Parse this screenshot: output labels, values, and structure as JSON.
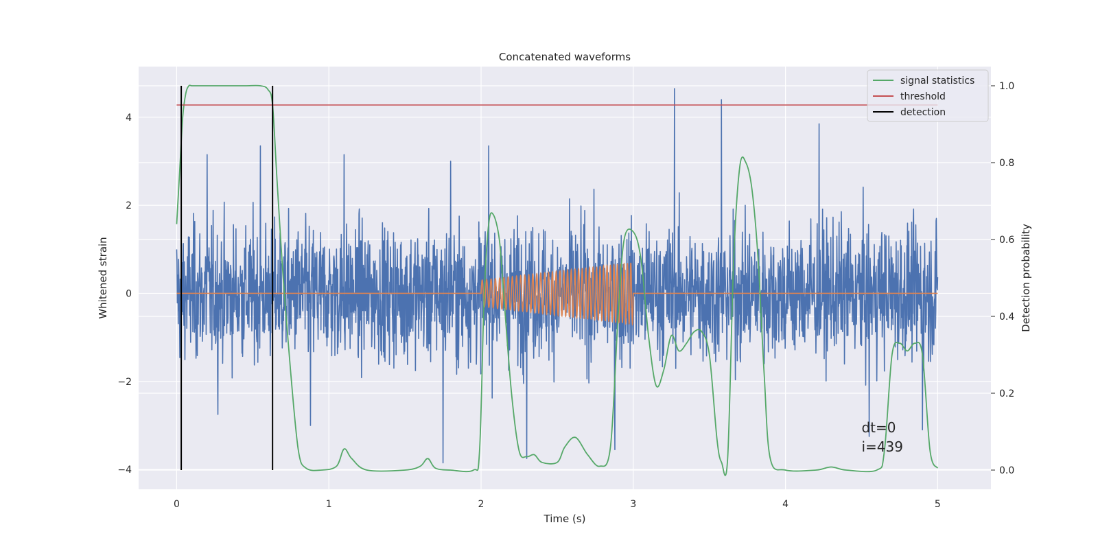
{
  "chart_data": {
    "type": "line",
    "title": "Concatenated waveforms",
    "xlabel": "Time (s)",
    "ylabel": "Whitened strain",
    "y2label": "Detection probability",
    "xlim": [
      -0.25,
      5.35
    ],
    "ylim": [
      -4.45,
      5.15
    ],
    "y2lim": [
      -0.05,
      1.05
    ],
    "xticks": [
      0,
      1,
      2,
      3,
      4,
      5
    ],
    "xtick_labels": [
      "0",
      "1",
      "2",
      "3",
      "4",
      "5"
    ],
    "yticks": [
      -4,
      -2,
      0,
      2,
      4
    ],
    "ytick_labels": [
      "−4",
      "−2",
      "0",
      "2",
      "4"
    ],
    "y2ticks": [
      0.0,
      0.2,
      0.4,
      0.6,
      0.8,
      1.0
    ],
    "y2tick_labels": [
      "0.0",
      "0.2",
      "0.4",
      "0.6",
      "0.8",
      "1.0"
    ],
    "grid": true,
    "legend_position": "top-right",
    "colors": {
      "background": "#eaeaf2",
      "grid": "#ffffff",
      "strain": "#4c72b0",
      "injection": "#dd8452",
      "statistics": "#55a868",
      "threshold": "#c44e52",
      "detection": "#000000"
    },
    "series": [
      {
        "name": "",
        "axis": "left",
        "kind": "noise",
        "x_range": [
          0,
          5
        ],
        "typical_envelope": [
          -1.4,
          1.6
        ],
        "spikes": [
          {
            "x": 0.2,
            "y": 3.15
          },
          {
            "x": 0.55,
            "y": 3.35
          },
          {
            "x": 1.1,
            "y": 3.15
          },
          {
            "x": 1.8,
            "y": 3.0
          },
          {
            "x": 2.05,
            "y": 3.35
          },
          {
            "x": 3.27,
            "y": 4.65
          },
          {
            "x": 3.58,
            "y": 4.4
          },
          {
            "x": 4.22,
            "y": 3.85
          },
          {
            "x": 1.75,
            "y": -3.85
          },
          {
            "x": 2.3,
            "y": -3.75
          },
          {
            "x": 2.88,
            "y": -3.55
          },
          {
            "x": 4.55,
            "y": -3.25
          },
          {
            "x": 4.9,
            "y": -3.1
          },
          {
            "x": 0.27,
            "y": -2.75
          },
          {
            "x": 0.88,
            "y": -3.0
          }
        ]
      },
      {
        "name": "",
        "axis": "left",
        "kind": "chirp",
        "flat_x_range": [
          0,
          5
        ],
        "chirp_x_range": [
          2.0,
          3.0
        ],
        "amplitude_start": 0.3,
        "amplitude_end": 0.7,
        "cycles": 40
      },
      {
        "name": "signal statistics",
        "axis": "right",
        "x": [
          0,
          0.02,
          0.04,
          0.06,
          0.08,
          0.1,
          0.15,
          0.3,
          0.45,
          0.55,
          0.6,
          0.63,
          0.66,
          0.7,
          0.75,
          0.8,
          0.85,
          0.95,
          1.05,
          1.1,
          1.15,
          1.25,
          1.5,
          1.6,
          1.65,
          1.7,
          1.8,
          1.95,
          1.99,
          2.02,
          2.05,
          2.08,
          2.12,
          2.15,
          2.2,
          2.25,
          2.3,
          2.35,
          2.4,
          2.5,
          2.55,
          2.62,
          2.7,
          2.78,
          2.85,
          2.9,
          2.94,
          3.0,
          3.05,
          3.1,
          3.15,
          3.2,
          3.25,
          3.3,
          3.35,
          3.4,
          3.45,
          3.5,
          3.55,
          3.58,
          3.62,
          3.66,
          3.7,
          3.74,
          3.78,
          3.82,
          3.86,
          3.9,
          4.0,
          4.2,
          4.3,
          4.4,
          4.6,
          4.65,
          4.7,
          4.75,
          4.8,
          4.85,
          4.9,
          4.95,
          5.0
        ],
        "y": [
          0.64,
          0.78,
          0.92,
          0.98,
          1.0,
          1.0,
          1.0,
          1.0,
          1.0,
          1.0,
          0.99,
          0.95,
          0.75,
          0.5,
          0.25,
          0.05,
          0.005,
          0.0,
          0.01,
          0.055,
          0.03,
          0.0,
          0.0,
          0.01,
          0.03,
          0.005,
          0.0,
          0.0,
          0.05,
          0.45,
          0.64,
          0.665,
          0.6,
          0.45,
          0.2,
          0.05,
          0.035,
          0.04,
          0.02,
          0.02,
          0.06,
          0.085,
          0.04,
          0.01,
          0.06,
          0.4,
          0.6,
          0.62,
          0.55,
          0.35,
          0.22,
          0.26,
          0.35,
          0.31,
          0.33,
          0.36,
          0.36,
          0.3,
          0.08,
          0.02,
          0.03,
          0.55,
          0.79,
          0.8,
          0.73,
          0.55,
          0.25,
          0.03,
          0.0,
          0.0,
          0.008,
          0.0,
          0.0,
          0.05,
          0.3,
          0.33,
          0.31,
          0.33,
          0.3,
          0.05,
          0.005
        ]
      },
      {
        "name": "threshold",
        "axis": "right",
        "x": [
          0,
          5
        ],
        "y": [
          0.95,
          0.95
        ]
      },
      {
        "name": "detection",
        "axis": "right",
        "vlines_x": [
          0.03,
          0.63
        ],
        "ymin": 0.0,
        "ymax": 1.0
      }
    ],
    "legend": [
      "signal statistics",
      "threshold",
      "detection"
    ],
    "annotation": {
      "x": 4.5,
      "line1": "dt=0",
      "line2": "i=439"
    }
  }
}
